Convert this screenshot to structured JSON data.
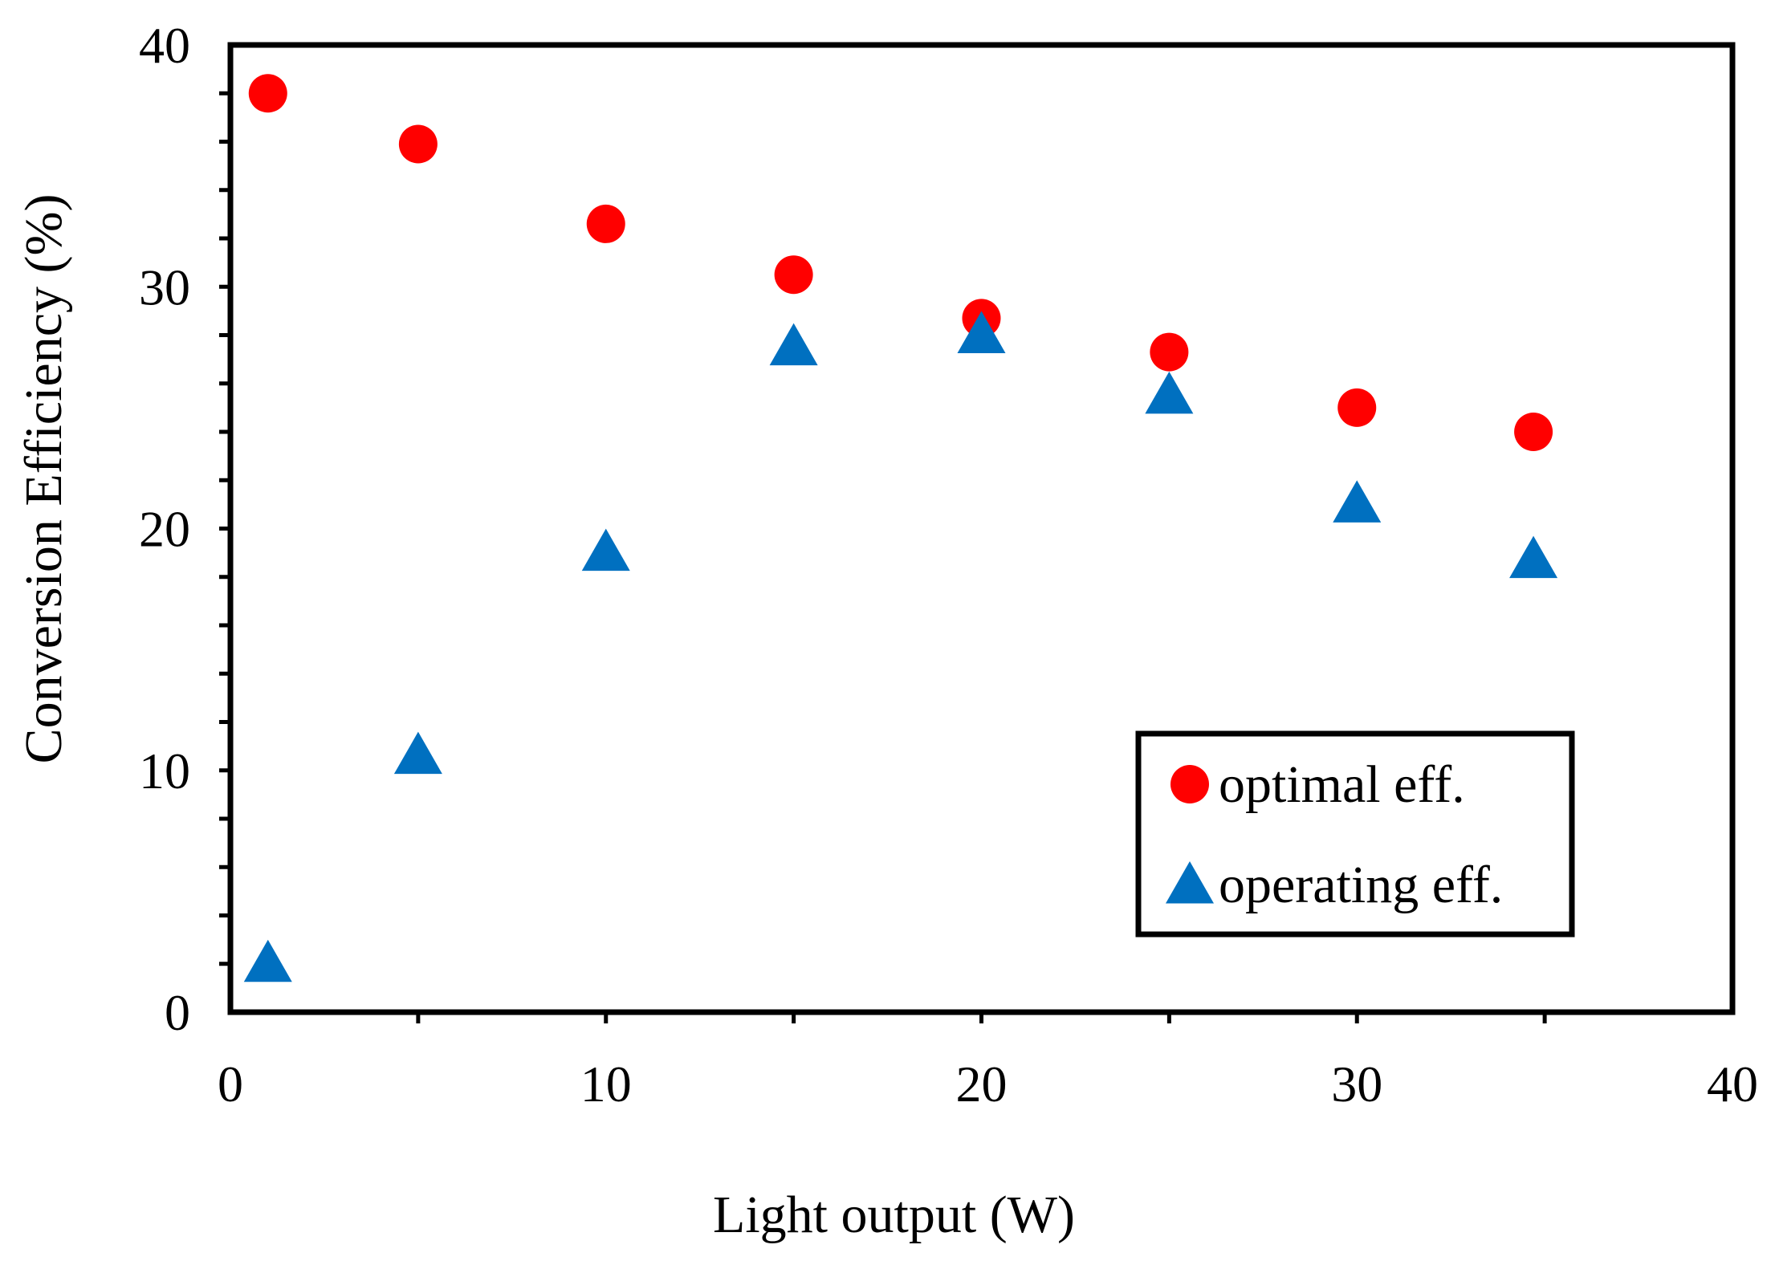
{
  "chart_data": {
    "type": "scatter",
    "title": "",
    "xlabel": "Light output (W)",
    "ylabel": "Conversion Efficiency (%)",
    "xlim": [
      0,
      40
    ],
    "ylim": [
      0,
      40
    ],
    "x_ticks": [
      0,
      10,
      20,
      30,
      40
    ],
    "y_ticks": [
      0,
      10,
      20,
      30,
      40
    ],
    "x_tick_labels": [
      "0",
      "10",
      "20",
      "30",
      "40"
    ],
    "y_tick_labels": [
      "0",
      "10",
      "20",
      "30",
      "40"
    ],
    "grid": false,
    "legend_position": "bottom-right",
    "series": [
      {
        "name": "optimal eff.",
        "marker": "circle",
        "color": "#ff0000",
        "points": [
          {
            "x": 1,
            "y": 38
          },
          {
            "x": 5,
            "y": 35.9
          },
          {
            "x": 10,
            "y": 32.6
          },
          {
            "x": 15,
            "y": 30.5
          },
          {
            "x": 20,
            "y": 28.7
          },
          {
            "x": 25,
            "y": 27.3
          },
          {
            "x": 30,
            "y": 25
          },
          {
            "x": 34.7,
            "y": 24
          }
        ]
      },
      {
        "name": "operating eff.",
        "marker": "triangle",
        "color": "#0070c0",
        "points": [
          {
            "x": 1,
            "y": 2
          },
          {
            "x": 5,
            "y": 10.6
          },
          {
            "x": 10,
            "y": 19
          },
          {
            "x": 15,
            "y": 27.5
          },
          {
            "x": 20,
            "y": 28
          },
          {
            "x": 25,
            "y": 25.5
          },
          {
            "x": 30,
            "y": 21
          },
          {
            "x": 34.7,
            "y": 18.7
          }
        ]
      }
    ]
  }
}
